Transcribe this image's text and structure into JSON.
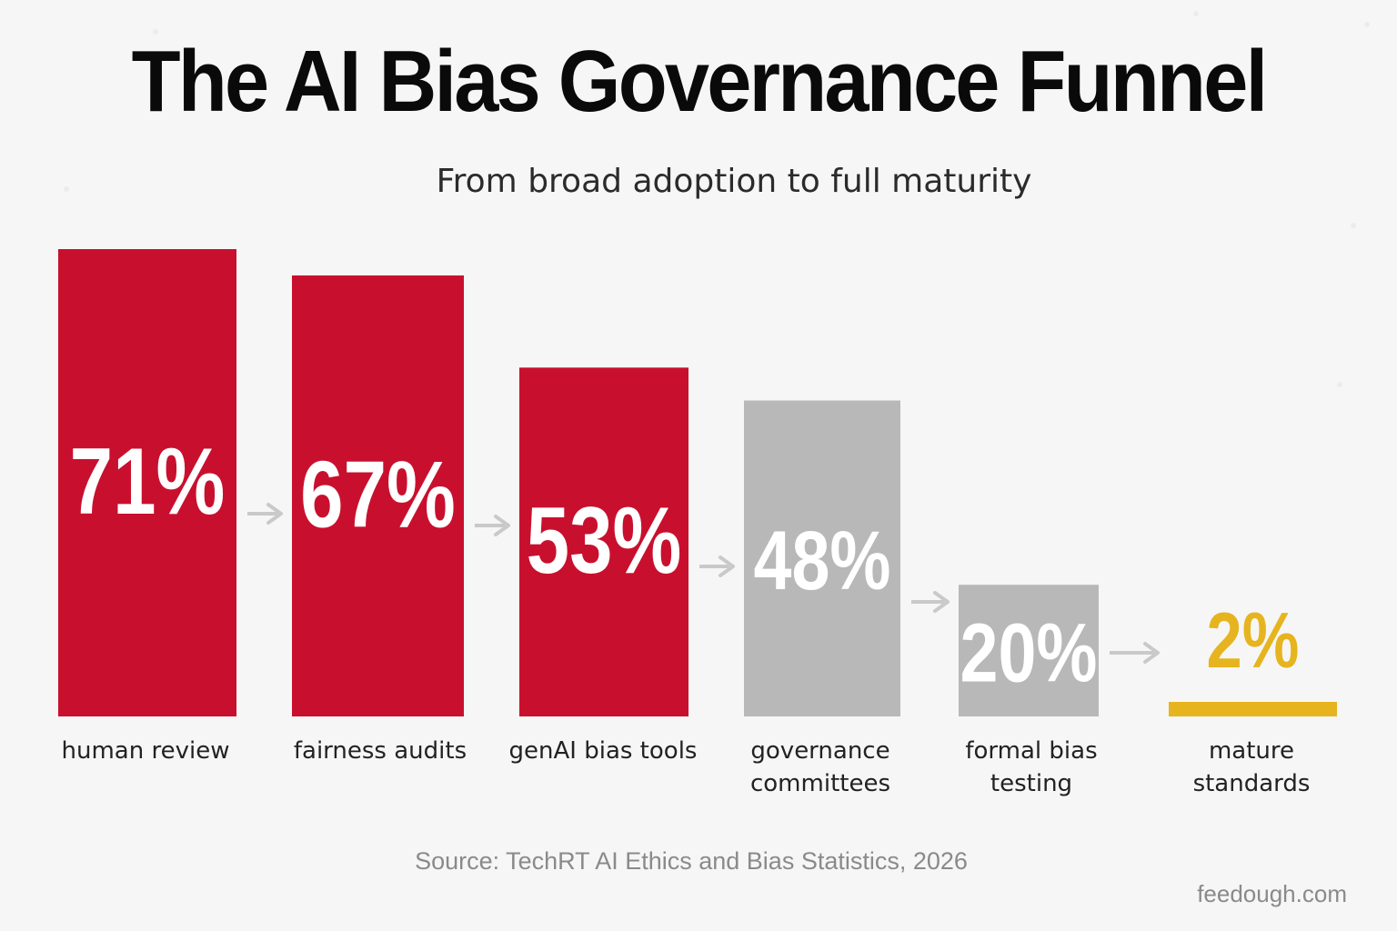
{
  "title": "The AI Bias Governance Funnel",
  "subtitle": "From broad adoption to full maturity",
  "source": "Source: TechRT AI Ethics and Bias Statistics, 2026",
  "credit": "feedough.com",
  "colors": {
    "red": "#c8102e",
    "gray": "#b8b8b8",
    "gold": "#e6b41e",
    "arrow": "#c9c9c9",
    "label_text": "#222222",
    "background": "#f6f6f6"
  },
  "chart_data": {
    "type": "bar",
    "unit": "%",
    "ylim": [
      0,
      71
    ],
    "grid": false,
    "categories": [
      [
        "human review"
      ],
      [
        "fairness audits"
      ],
      [
        "genAI bias tools"
      ],
      [
        "governance",
        "committees"
      ],
      [
        "formal bias",
        "testing"
      ],
      [
        "mature",
        "standards"
      ]
    ],
    "values": [
      71,
      67,
      53,
      48,
      20,
      2
    ],
    "value_labels": [
      "71%",
      "67%",
      "53%",
      "48%",
      "20%",
      "2%"
    ],
    "bar_colors": [
      "red",
      "red",
      "red",
      "gray",
      "gray",
      "gold"
    ],
    "arrows_between_bars": true
  }
}
